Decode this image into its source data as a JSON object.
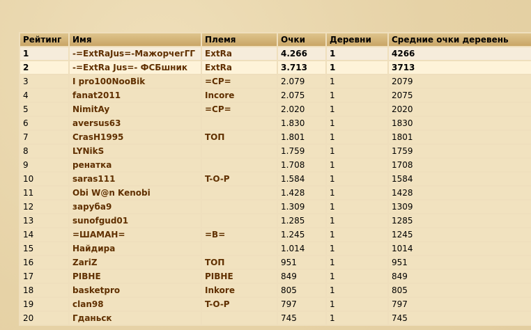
{
  "headers": [
    "Рейтинг",
    "Имя",
    "Племя",
    "Очки",
    "Деревни",
    "Средние очки деревень"
  ],
  "rows": [
    {
      "rank": "1",
      "name": "-=ExtRaJus=-МажорчегГГ",
      "tribe": "ExtRa",
      "points": "4.266",
      "villages": "1",
      "avg": "4266"
    },
    {
      "rank": "2",
      "name": "-=ExtRa Jus=- ФСБшник",
      "tribe": "ExtRa",
      "points": "3.713",
      "villages": "1",
      "avg": "3713"
    },
    {
      "rank": "3",
      "name": "I pro100NooBik",
      "tribe": "=CP=",
      "points": "2.079",
      "villages": "1",
      "avg": "2079"
    },
    {
      "rank": "4",
      "name": "fanat2011",
      "tribe": "Incore",
      "points": "2.075",
      "villages": "1",
      "avg": "2075"
    },
    {
      "rank": "5",
      "name": "NimitAy",
      "tribe": "=CP=",
      "points": "2.020",
      "villages": "1",
      "avg": "2020"
    },
    {
      "rank": "6",
      "name": "aversus63",
      "tribe": "",
      "points": "1.830",
      "villages": "1",
      "avg": "1830"
    },
    {
      "rank": "7",
      "name": "CrasH1995",
      "tribe": "ТОП",
      "points": "1.801",
      "villages": "1",
      "avg": "1801"
    },
    {
      "rank": "8",
      "name": "LYNikS",
      "tribe": "",
      "points": "1.759",
      "villages": "1",
      "avg": "1759"
    },
    {
      "rank": "9",
      "name": "ренатка",
      "tribe": "",
      "points": "1.708",
      "villages": "1",
      "avg": "1708"
    },
    {
      "rank": "10",
      "name": "saras111",
      "tribe": "T-O-P",
      "points": "1.584",
      "villages": "1",
      "avg": "1584"
    },
    {
      "rank": "11",
      "name": "Obi W@n Kenobi",
      "tribe": "",
      "points": "1.428",
      "villages": "1",
      "avg": "1428"
    },
    {
      "rank": "12",
      "name": "заруба9",
      "tribe": "",
      "points": "1.309",
      "villages": "1",
      "avg": "1309"
    },
    {
      "rank": "13",
      "name": "sunofgud01",
      "tribe": "",
      "points": "1.285",
      "villages": "1",
      "avg": "1285"
    },
    {
      "rank": "14",
      "name": "=ШАМАН=",
      "tribe": "=B=",
      "points": "1.245",
      "villages": "1",
      "avg": "1245"
    },
    {
      "rank": "15",
      "name": "Найдира",
      "tribe": "",
      "points": "1.014",
      "villages": "1",
      "avg": "1014"
    },
    {
      "rank": "16",
      "name": "ZariZ",
      "tribe": "ТОП",
      "points": "951",
      "villages": "1",
      "avg": "951"
    },
    {
      "rank": "17",
      "name": "PIBHE",
      "tribe": "PIBHE",
      "points": "849",
      "villages": "1",
      "avg": "849"
    },
    {
      "rank": "18",
      "name": "basketpro",
      "tribe": "Inkore",
      "points": "805",
      "villages": "1",
      "avg": "805"
    },
    {
      "rank": "19",
      "name": "clan98",
      "tribe": "T-O-P",
      "points": "797",
      "villages": "1",
      "avg": "797"
    },
    {
      "rank": "20",
      "name": "Гданьск",
      "tribe": "",
      "points": "745",
      "villages": "1",
      "avg": "745"
    }
  ]
}
